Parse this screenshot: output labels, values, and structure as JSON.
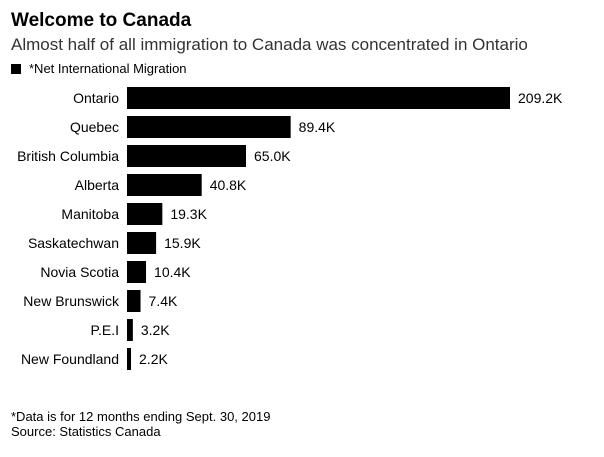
{
  "header": {
    "title": "Welcome to Canada",
    "subtitle": "Almost half of all immigration to Canada was concentrated in Ontario"
  },
  "legend": {
    "label": "*Net International Migration",
    "color": "#000000"
  },
  "chart_data": {
    "type": "bar",
    "orientation": "horizontal",
    "categories": [
      "Ontario",
      "Quebec",
      "British Columbia",
      "Alberta",
      "Manitoba",
      "Saskatechwan",
      "Novia Scotia",
      "New Brunswick",
      "P.E.I",
      "New Foundland"
    ],
    "series": [
      {
        "name": "*Net International Migration",
        "values": [
          209.2,
          89.4,
          65.0,
          40.8,
          19.3,
          15.9,
          10.4,
          7.4,
          3.2,
          2.2
        ],
        "labels": [
          "209.2K",
          "89.4K",
          "65.0K",
          "40.8K",
          "19.3K",
          "15.9K",
          "10.4K",
          "7.4K",
          "3.2K",
          "2.2K"
        ],
        "color": "#000000"
      }
    ],
    "xlim": [
      0,
      209.2
    ],
    "grid": false,
    "legend_position": "top-left"
  },
  "footer": {
    "note": "*Data is for 12 months ending Sept. 30, 2019",
    "source": "Source: Statistics Canada"
  }
}
